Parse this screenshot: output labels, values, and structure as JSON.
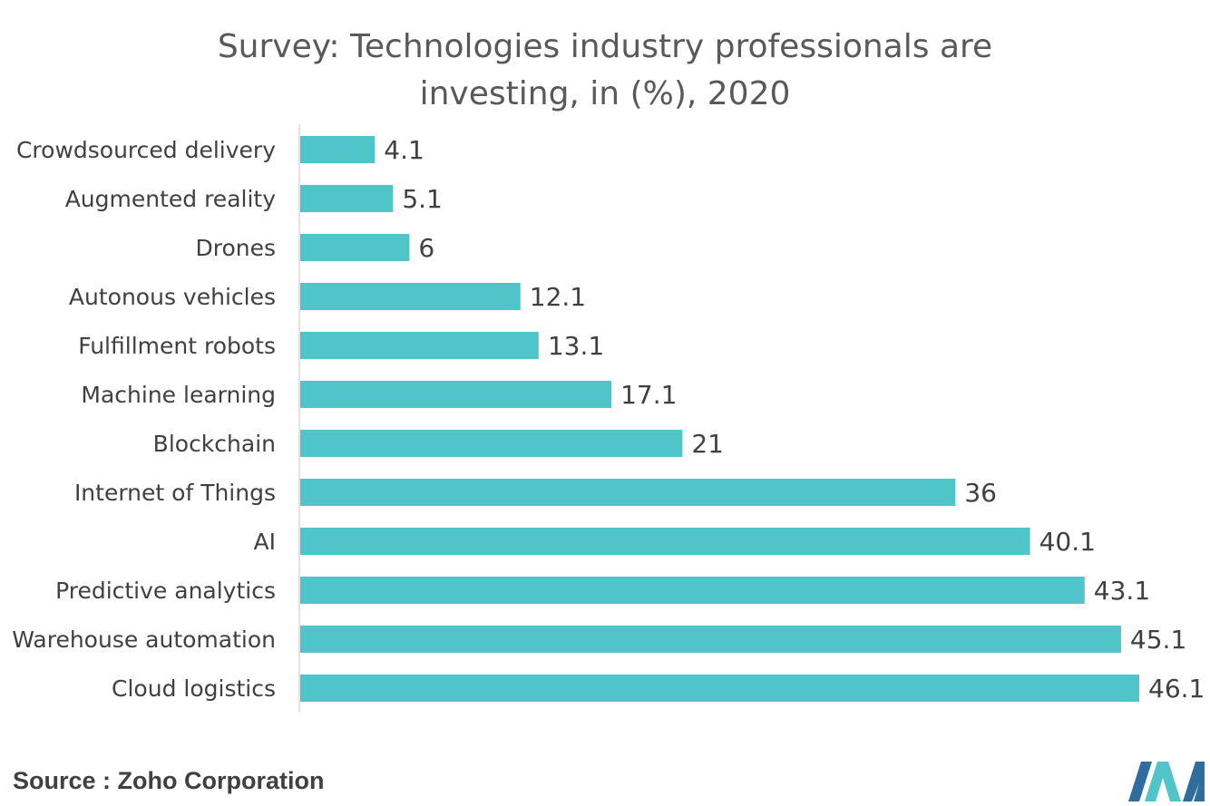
{
  "title_line1": "Survey: Technologies industry professionals are",
  "title_line2": "investing, in (%), 2020",
  "source": "Source : Zoho Corporation",
  "colors": {
    "bar": "#4fc4c9",
    "axis": "#d9d9d9",
    "logo_dark": "#2d6e9e",
    "logo_light": "#4fc4c9"
  },
  "chart_data": {
    "type": "bar",
    "orientation": "horizontal",
    "title": "Survey: Technologies industry professionals are investing, in (%), 2020",
    "xlabel": "",
    "ylabel": "",
    "xlim": [
      0,
      46.1
    ],
    "grid": false,
    "categories": [
      "Crowdsourced delivery",
      "Augmented reality",
      "Drones",
      "Autonous vehicles",
      "Fulfillment robots",
      "Machine learning",
      "Blockchain",
      "Internet of Things",
      "AI",
      "Predictive analytics",
      "Warehouse automation",
      "Cloud logistics"
    ],
    "values": [
      4.1,
      5.1,
      6,
      12.1,
      13.1,
      17.1,
      21,
      36,
      40.1,
      43.1,
      45.1,
      46.1
    ],
    "value_labels": [
      "4.1",
      "5.1",
      "6",
      "12.1",
      "13.1",
      "17.1",
      "21",
      "36",
      "40.1",
      "43.1",
      "45.1",
      "46.1"
    ]
  }
}
